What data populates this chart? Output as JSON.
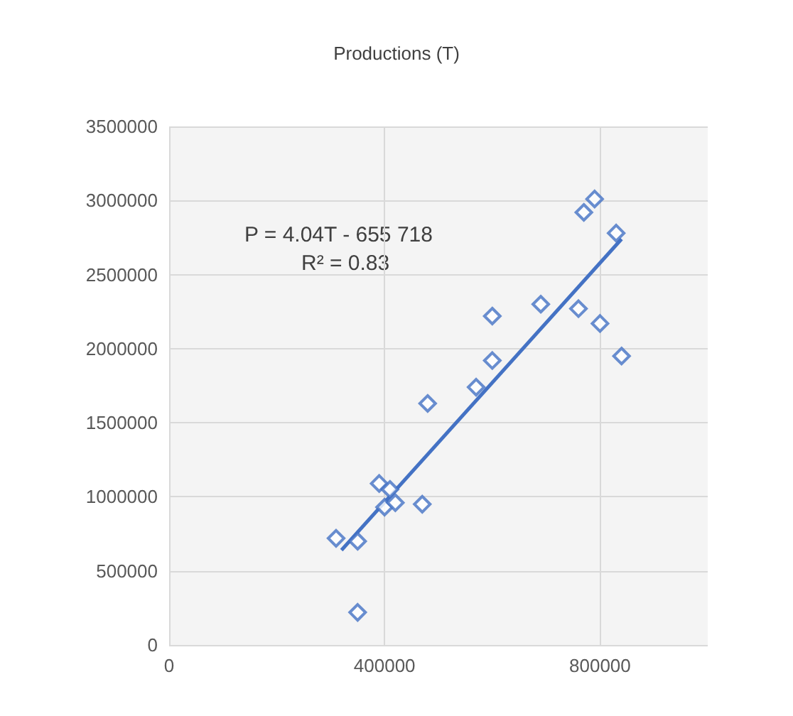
{
  "chart_data": {
    "type": "scatter",
    "title": "Productions (T)",
    "xlim": [
      0,
      1000000
    ],
    "xticks": [
      0,
      400000,
      800000
    ],
    "ylim": [
      0,
      3500000
    ],
    "yticks": [
      0,
      500000,
      1000000,
      1500000,
      2000000,
      2500000,
      3000000,
      3500000
    ],
    "grid": true,
    "marker": "diamond",
    "annotations": [
      "P = 4.04T - 655 718",
      "R² = 0.83"
    ],
    "series": [
      {
        "color": "#4472c4",
        "x": [
          310000,
          350000,
          350000,
          390000,
          410000,
          400000,
          420000,
          470000,
          480000,
          570000,
          600000,
          600000,
          690000,
          760000,
          800000,
          840000,
          770000,
          790000,
          830000
        ],
        "values": [
          720000,
          700000,
          220000,
          1090000,
          1050000,
          930000,
          960000,
          950000,
          1630000,
          1740000,
          1920000,
          2220000,
          2300000,
          2270000,
          2170000,
          1950000,
          2920000,
          3010000,
          2780000
        ]
      },
      {
        "type": "line",
        "color": "#4472c4",
        "marker": "none",
        "x": [
          320000,
          840000
        ],
        "values": [
          640000,
          2740000
        ]
      }
    ]
  }
}
